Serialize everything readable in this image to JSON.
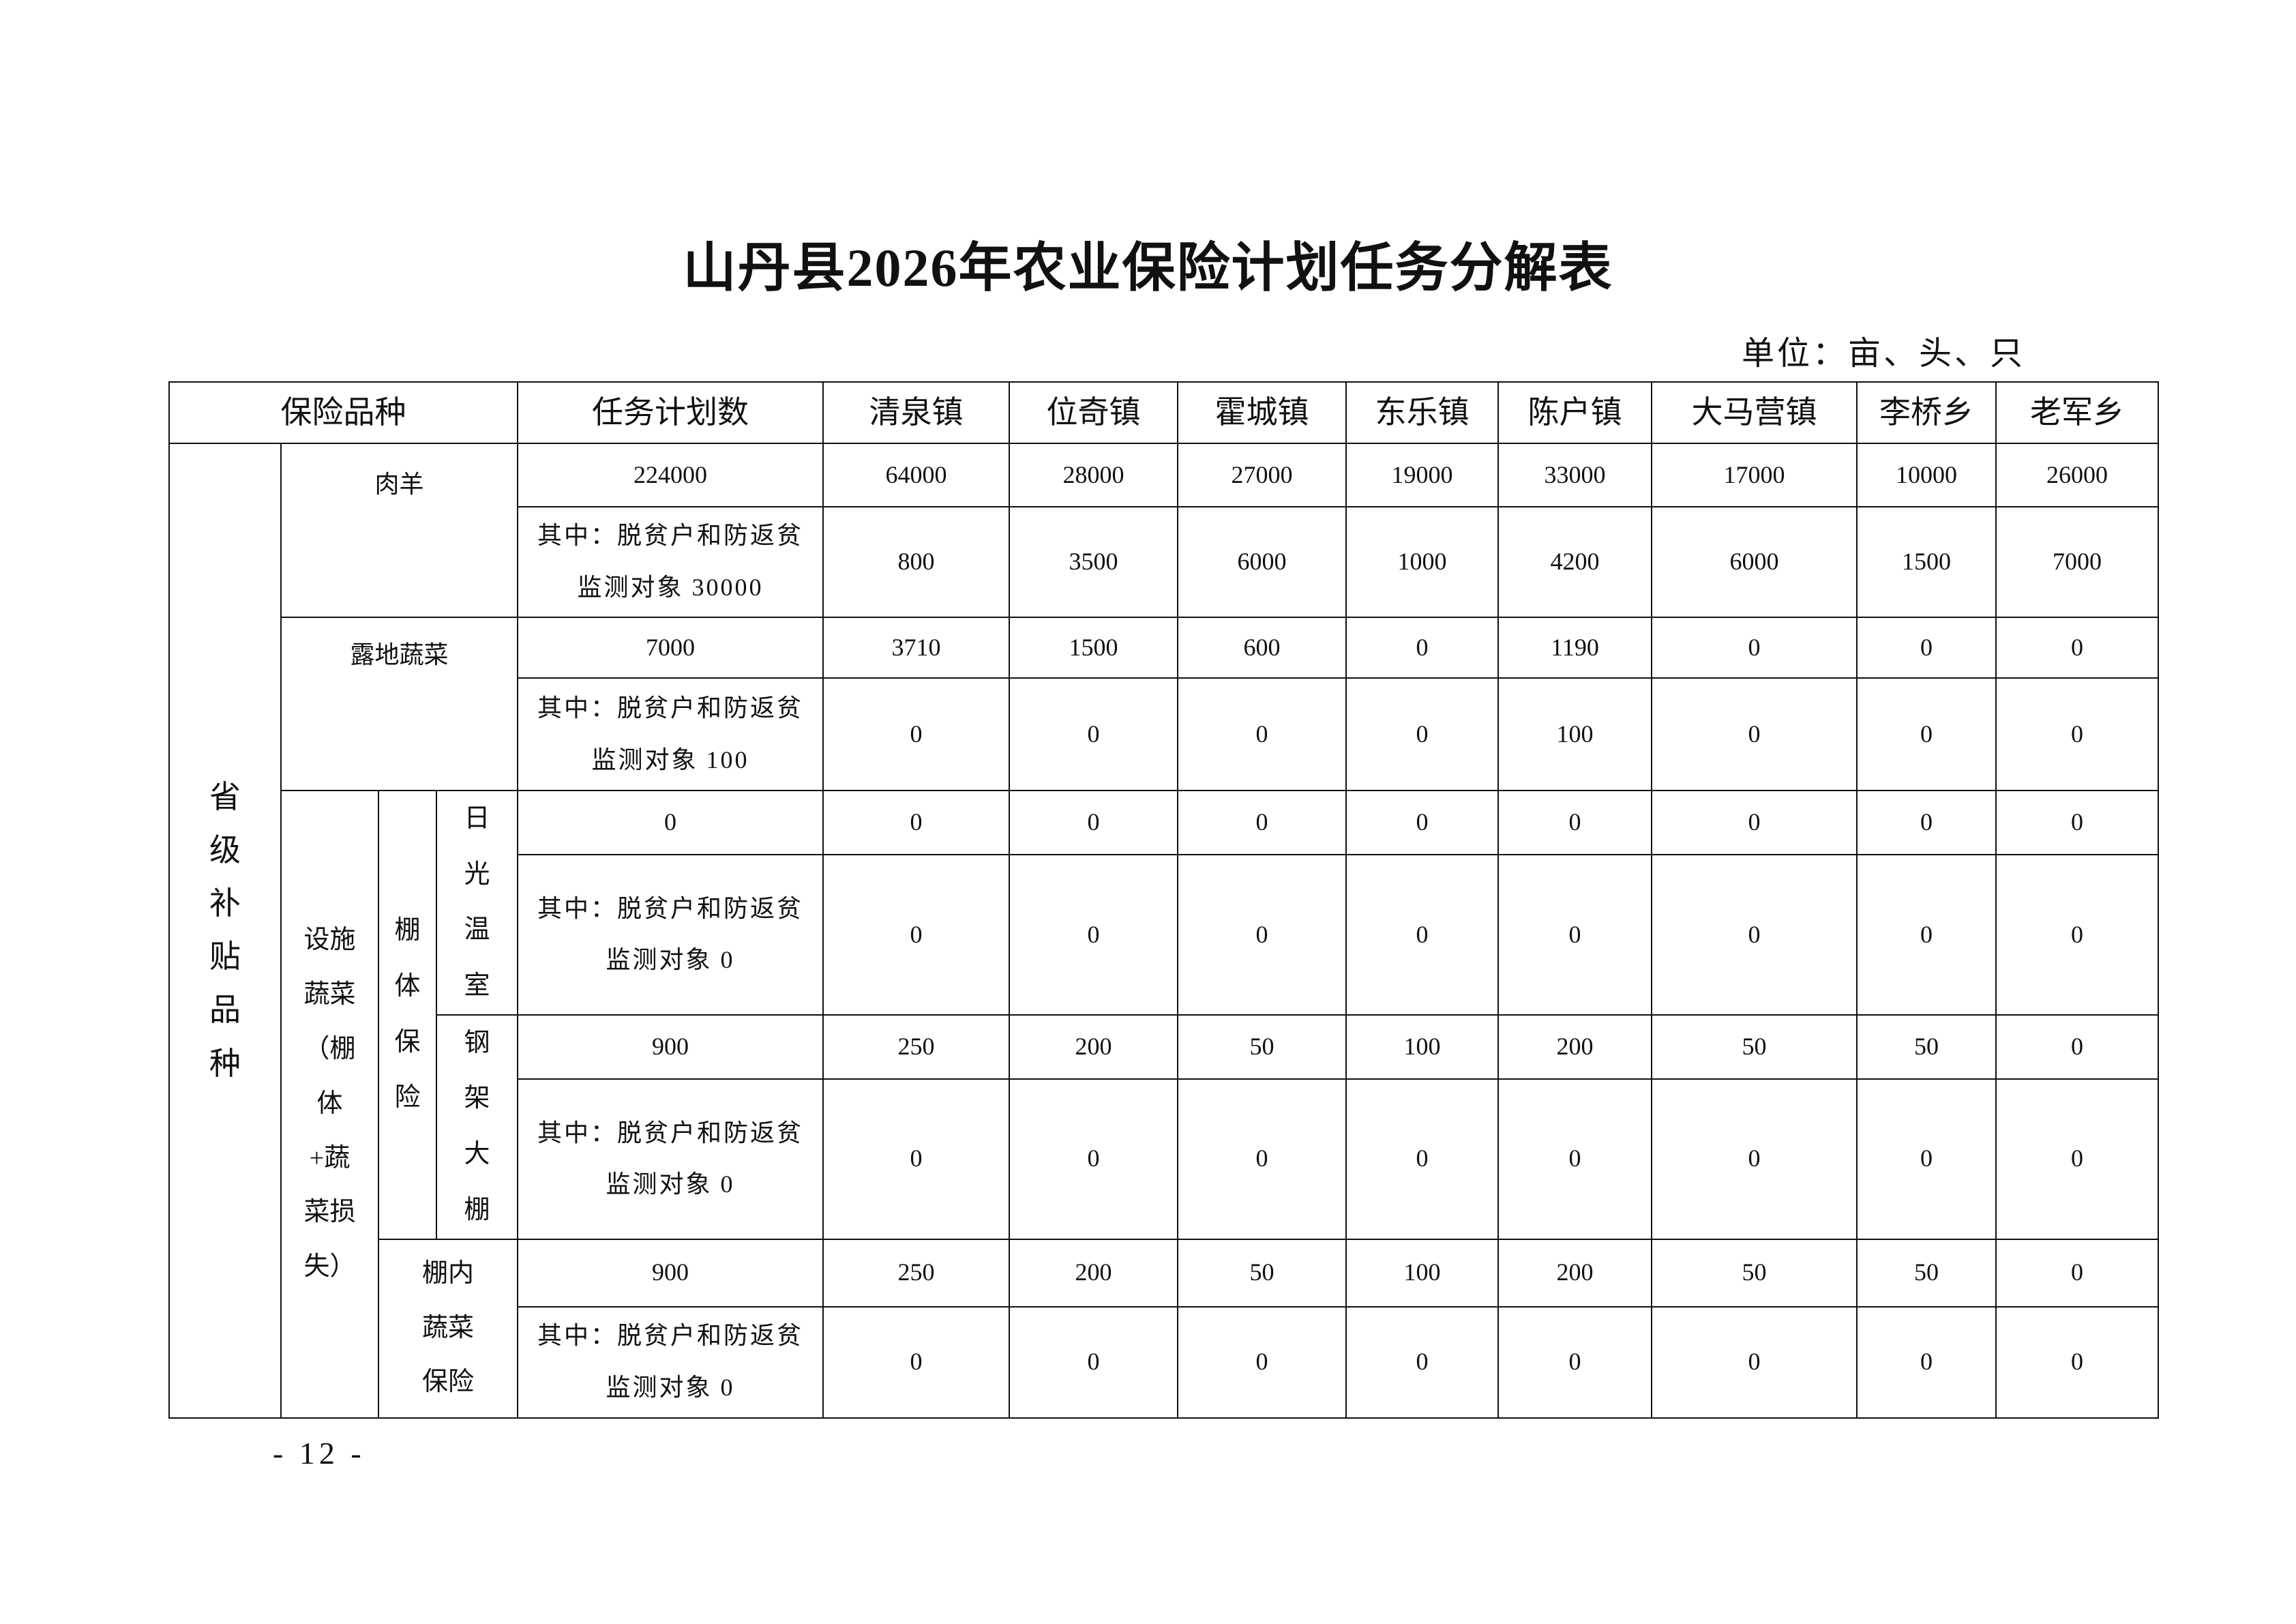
{
  "title": "山丹县2026年农业保险计划任务分解表",
  "unit": "单位：亩、头、只",
  "header": {
    "category": "保险品种",
    "plan": "任务计划数",
    "towns": [
      "清泉镇",
      "位奇镇",
      "霍城镇",
      "东乐镇",
      "陈户镇",
      "大马营镇",
      "李桥乡",
      "老军乡"
    ]
  },
  "labels": {
    "provincial": "省级补贴品种",
    "meat_sheep": "肉羊",
    "open_veg": "露地蔬菜",
    "facility_veg": "设施蔬菜（棚体+蔬菜损失）",
    "shed_insurance": "棚体保险",
    "solar_greenhouse": "日光温室",
    "steel_shed": "钢架大棚",
    "in_shed_veg": "棚内蔬菜保险"
  },
  "rows": [
    {
      "plan": "224000",
      "values": [
        "64000",
        "28000",
        "27000",
        "19000",
        "33000",
        "17000",
        "10000",
        "26000"
      ]
    },
    {
      "plan": "其中：脱贫户和防返贫监测对象 30000",
      "values": [
        "800",
        "3500",
        "6000",
        "1000",
        "4200",
        "6000",
        "1500",
        "7000"
      ]
    },
    {
      "plan": "7000",
      "values": [
        "3710",
        "1500",
        "600",
        "0",
        "1190",
        "0",
        "0",
        "0"
      ]
    },
    {
      "plan": "其中：脱贫户和防返贫监测对象 100",
      "values": [
        "0",
        "0",
        "0",
        "0",
        "100",
        "0",
        "0",
        "0"
      ]
    },
    {
      "plan": "0",
      "values": [
        "0",
        "0",
        "0",
        "0",
        "0",
        "0",
        "0",
        "0"
      ]
    },
    {
      "plan": "其中：脱贫户和防返贫监测对象 0",
      "values": [
        "0",
        "0",
        "0",
        "0",
        "0",
        "0",
        "0",
        "0"
      ]
    },
    {
      "plan": "900",
      "values": [
        "250",
        "200",
        "50",
        "100",
        "200",
        "50",
        "50",
        "0"
      ]
    },
    {
      "plan": "其中：脱贫户和防返贫监测对象 0",
      "values": [
        "0",
        "0",
        "0",
        "0",
        "0",
        "0",
        "0",
        "0"
      ]
    },
    {
      "plan": "900",
      "values": [
        "250",
        "200",
        "50",
        "100",
        "200",
        "50",
        "50",
        "0"
      ]
    },
    {
      "plan": "其中：脱贫户和防返贫监测对象 0",
      "values": [
        "0",
        "0",
        "0",
        "0",
        "0",
        "0",
        "0",
        "0"
      ]
    }
  ],
  "page_number": "- 12 -"
}
